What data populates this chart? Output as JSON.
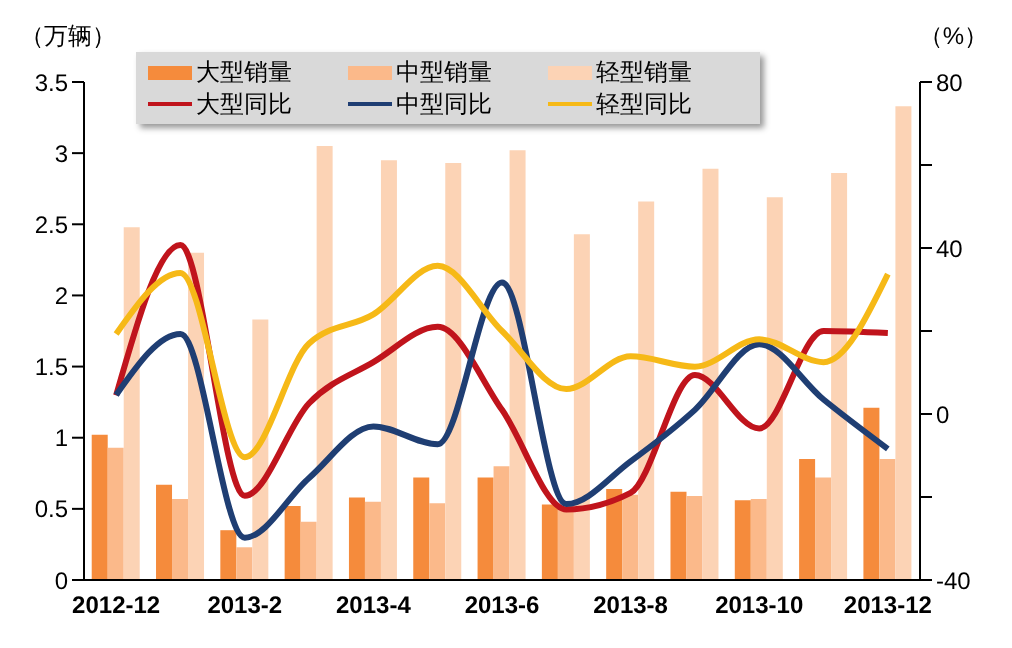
{
  "chart_data": {
    "type": "bar",
    "ylabel": "（万辆）",
    "y2label": "（%）",
    "categories": [
      "2012-12",
      null,
      "2013-2",
      null,
      "2013-4",
      null,
      "2013-6",
      null,
      "2013-8",
      null,
      "2013-10",
      null,
      "2013-12"
    ],
    "series": [
      {
        "name": "大型销量",
        "color": "#f58b3c",
        "values": [
          1.02,
          0.67,
          0.35,
          0.52,
          0.58,
          0.72,
          0.72,
          0.53,
          0.64,
          0.62,
          0.56,
          0.85,
          1.21
        ]
      },
      {
        "name": "中型销量",
        "color": "#fbb98a",
        "values": [
          0.93,
          0.57,
          0.23,
          0.41,
          0.55,
          0.54,
          0.8,
          0.52,
          0.6,
          0.59,
          0.57,
          0.72,
          0.85
        ]
      },
      {
        "name": "轻型销量",
        "color": "#fcd3b5",
        "values": [
          2.48,
          2.3,
          1.83,
          3.05,
          2.95,
          2.93,
          3.02,
          2.43,
          2.66,
          2.89,
          2.69,
          2.86,
          3.33
        ]
      },
      {
        "name": "大型同比",
        "type": "line",
        "axis": "y2",
        "color": "#c0141c",
        "values": [
          4.5,
          40.7,
          -19.7,
          2.6,
          12.5,
          21,
          1,
          -23,
          -19,
          9.4,
          -3.5,
          20,
          19.5
        ]
      },
      {
        "name": "中型同比",
        "type": "line",
        "axis": "y2",
        "color": "#1f3e73",
        "values": [
          4.6,
          19.3,
          -29.8,
          -15.4,
          -3,
          -7.3,
          31.7,
          -21.7,
          -11.4,
          1,
          16.8,
          3.5,
          -8.4
        ]
      },
      {
        "name": "轻型同比",
        "type": "line",
        "axis": "y2",
        "color": "#f6b917",
        "values": [
          19.3,
          34,
          -10.4,
          17,
          24,
          35.7,
          20,
          6,
          13.9,
          11.4,
          18,
          12.5,
          33.7
        ]
      }
    ],
    "ylim": [
      0,
      3.5
    ],
    "yticks": [
      0,
      0.5,
      1,
      1.5,
      2,
      2.5,
      3,
      3.5
    ],
    "y2lim": [
      -40,
      80
    ],
    "y2ticks": [
      -40,
      {
        "value": -20,
        "label": null
      },
      0,
      {
        "value": 20,
        "label": null
      },
      40,
      {
        "value": 60,
        "label": null
      },
      80
    ],
    "grid": false,
    "legend": "top",
    "marker": "none",
    "line_style": "solid"
  }
}
